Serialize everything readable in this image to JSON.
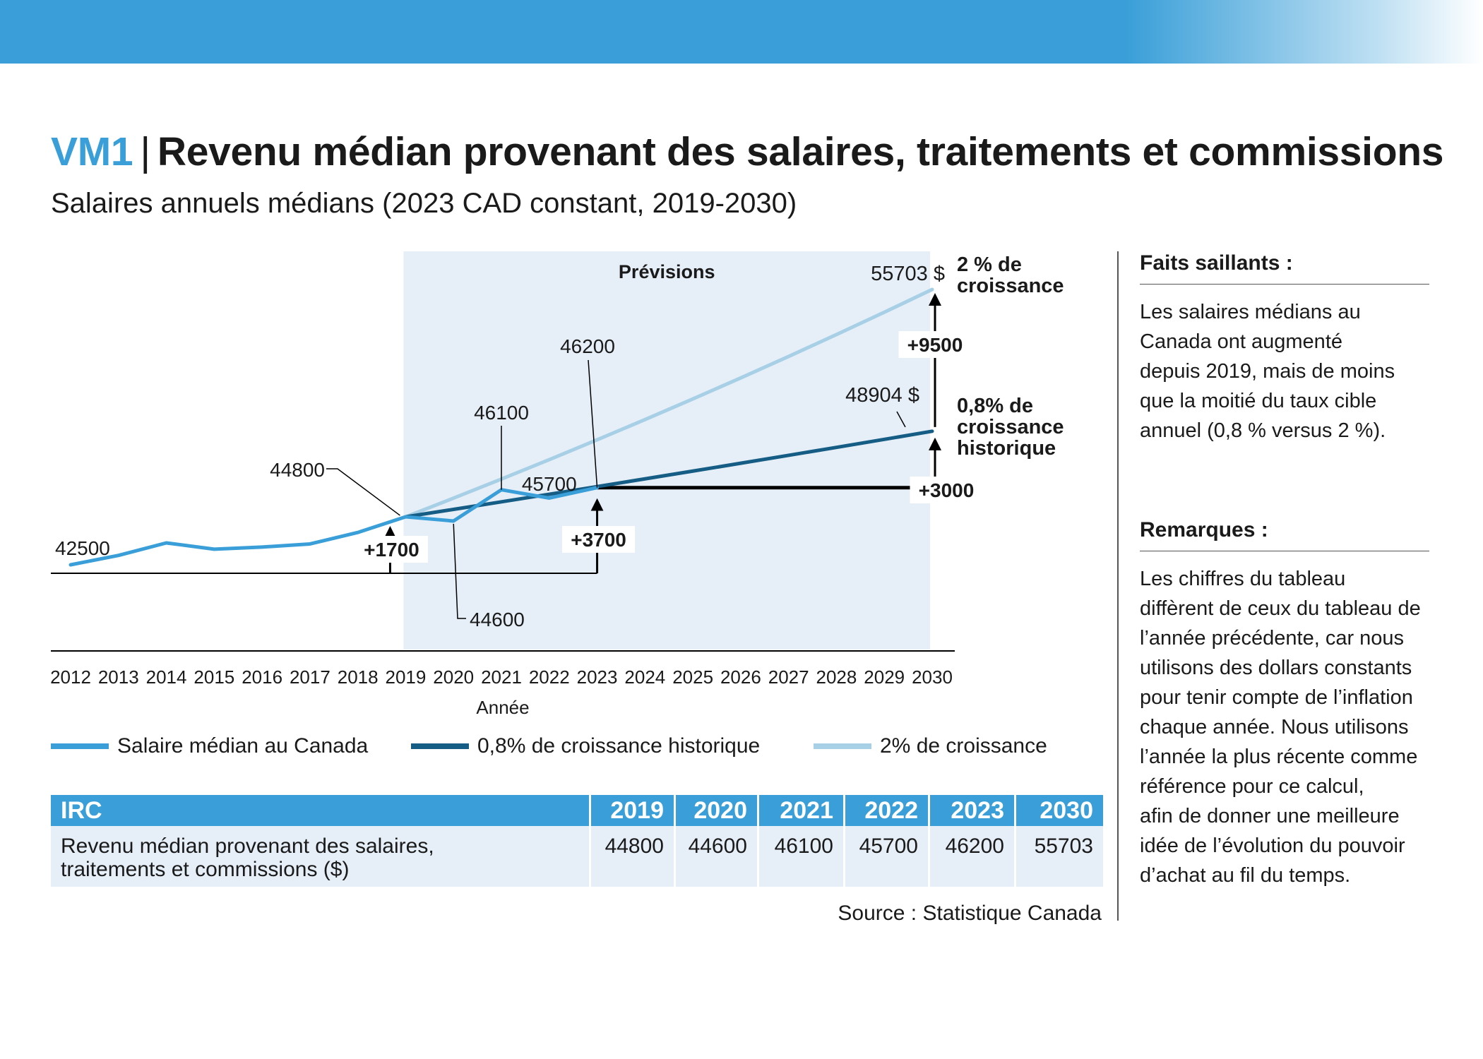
{
  "header": {
    "code": "VM1",
    "separator": "|",
    "title": "Revenu médian provenant des salaires, traitements et commissions",
    "subtitle": "Salaires annuels médians (2023 CAD constant, 2019-2030)"
  },
  "colors": {
    "accent": "#3a9fd8",
    "historical": "#155d85",
    "target": "#a7cfe6",
    "forecast_band": "#e6eff8",
    "text": "#1a1a1a"
  },
  "chart_data": {
    "type": "line",
    "title": "Salaires annuels médians (2023 CAD constant, 2019-2030)",
    "xlabel": "Année",
    "ylabel": "",
    "ylim": [
      41000,
      57000
    ],
    "grid": false,
    "legend_position": "bottom",
    "band_label": "Prévisions",
    "band_range": [
      2019,
      2030
    ],
    "categories": [
      "2012",
      "2013",
      "2014",
      "2015",
      "2016",
      "2017",
      "2018",
      "2019",
      "2020",
      "2021",
      "2022",
      "2023",
      "2024",
      "2025",
      "2026",
      "2027",
      "2028",
      "2029",
      "2030"
    ],
    "series": [
      {
        "name": "Salaire médian au Canada",
        "x": [
          2012,
          2013,
          2014,
          2015,
          2016,
          2017,
          2018,
          2019,
          2020,
          2021,
          2022,
          2023
        ],
        "values": [
          42500,
          42950,
          43550,
          43250,
          43350,
          43500,
          44050,
          44800,
          44600,
          46100,
          45700,
          46200
        ]
      },
      {
        "name": "0,8% de croissance historique",
        "x": [
          2019,
          2020,
          2021,
          2022,
          2023,
          2024,
          2025,
          2026,
          2027,
          2028,
          2029,
          2030
        ],
        "values": [
          44800,
          45158,
          45520,
          45884,
          46251,
          46621,
          46994,
          47370,
          47749,
          48131,
          48516,
          48904
        ]
      },
      {
        "name": "2% de croissance",
        "x": [
          2019,
          2020,
          2021,
          2022,
          2023,
          2024,
          2025,
          2026,
          2027,
          2028,
          2029,
          2030
        ],
        "values": [
          44800,
          45696,
          46610,
          47542,
          48493,
          49463,
          50452,
          51461,
          52490,
          53540,
          54611,
          55703
        ]
      }
    ],
    "annotations": {
      "start_label": "42500",
      "callouts": [
        "44800",
        "44600",
        "46100",
        "45700",
        "46200"
      ],
      "end_target": "55703 $",
      "end_target_label": [
        "2 % de",
        "croissance"
      ],
      "end_hist": "48904 $",
      "end_hist_label": [
        "0,8% de",
        "croissance",
        "historique"
      ],
      "deltas": [
        "+1700",
        "+3700",
        "+9500",
        "+3000"
      ],
      "flat_level": 46200
    }
  },
  "legend": [
    {
      "label": "Salaire médian au Canada",
      "color": "#3a9fd8"
    },
    {
      "label": "0,8% de croissance historique",
      "color": "#155d85"
    },
    {
      "label": "2% de croissance",
      "color": "#a7cfe6"
    }
  ],
  "table": {
    "headers": [
      "IRC",
      "2019",
      "2020",
      "2021",
      "2022",
      "2023",
      "2030"
    ],
    "row_label": [
      "Revenu médian provenant des salaires,",
      "traitements et commissions ($)"
    ],
    "values": [
      "44800",
      "44600",
      "46100",
      "45700",
      "46200",
      "55703"
    ]
  },
  "source": "Source : Statistique Canada",
  "sidebar": {
    "highlights_title": "Faits saillants :",
    "highlights_lines": [
      "Les salaires médians au",
      "Canada ont augmenté",
      "depuis 2019, mais de moins",
      "que la moitié du taux cible",
      "annuel (0,8 % versus 2 %)."
    ],
    "notes_title": "Remarques :",
    "notes_lines": [
      "Les chiffres du tableau",
      "diffèrent de ceux du tableau de",
      "l’année précédente, car nous",
      "utilisons des dollars constants",
      "pour tenir compte de l’inflation",
      "chaque année. Nous utilisons",
      "l’année la plus récente comme",
      "référence pour ce calcul,",
      "afin de donner une meilleure",
      "idée de l’évolution du pouvoir",
      "d’achat au fil du temps."
    ]
  }
}
